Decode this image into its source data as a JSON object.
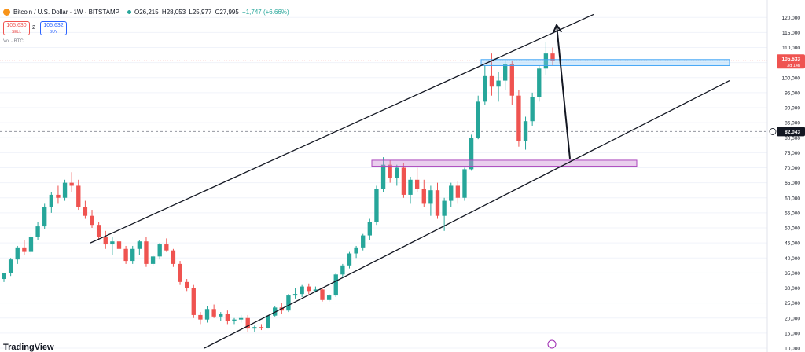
{
  "header": {
    "symbol": "Bitcoin / U.S. Dollar · 1W · BITSTAMP",
    "open": "O26,215",
    "high": "H28,053",
    "low": "L25,977",
    "close": "C27,995",
    "change": "+1,747 (+6.66%)"
  },
  "trade": {
    "sell_price": "105,630",
    "sell_label": "SELL",
    "spread": "2",
    "buy_price": "105,632",
    "buy_label": "BUY"
  },
  "volume_label": "Vol · BTC",
  "brand": "TradingView",
  "price_axis": {
    "ticks": [
      "120,000",
      "115,000",
      "110,000",
      "105,000",
      "100,000",
      "95,000",
      "90,000",
      "85,000",
      "80,000",
      "75,000",
      "70,000",
      "65,000",
      "60,000",
      "55,000",
      "50,000",
      "45,000",
      "40,000",
      "35,000",
      "30,000",
      "25,000",
      "20,000",
      "15,000",
      "10,000"
    ],
    "last_price_label": "105,633",
    "last_price_countdown": "3d 14h",
    "crosshair_label": "82,043"
  },
  "colors": {
    "up": "#26a69a",
    "down": "#ef5350",
    "zone": "#ce93d8",
    "zone_blue": "#90caf9",
    "line": "#131722"
  },
  "chart_data": {
    "type": "candlestick",
    "ylim": [
      10000,
      120000
    ],
    "crosshair_price": 82043,
    "last_price": 105633,
    "candles": [
      [
        33000,
        35000,
        32000,
        35000
      ],
      [
        35000,
        40000,
        34000,
        39500
      ],
      [
        39500,
        44000,
        38000,
        43500
      ],
      [
        43500,
        46000,
        41000,
        42000
      ],
      [
        42000,
        48000,
        41000,
        47000
      ],
      [
        47000,
        52000,
        46000,
        50500
      ],
      [
        50500,
        58000,
        49500,
        57000
      ],
      [
        57000,
        62000,
        55000,
        61000
      ],
      [
        61000,
        64000,
        58000,
        60000
      ],
      [
        60000,
        66000,
        59000,
        65000
      ],
      [
        65000,
        68500,
        62000,
        64000
      ],
      [
        64000,
        66000,
        56000,
        57000
      ],
      [
        57000,
        59000,
        53000,
        54000
      ],
      [
        54000,
        56000,
        50000,
        51000
      ],
      [
        51000,
        52000,
        46000,
        47000
      ],
      [
        47000,
        49000,
        43000,
        44500
      ],
      [
        44500,
        47000,
        41000,
        45500
      ],
      [
        45500,
        47000,
        42000,
        43000
      ],
      [
        43000,
        44000,
        38000,
        39000
      ],
      [
        39000,
        44000,
        38000,
        43000
      ],
      [
        43000,
        46000,
        41000,
        45500
      ],
      [
        45500,
        47000,
        37000,
        38000
      ],
      [
        38000,
        41000,
        37500,
        40500
      ],
      [
        40500,
        45000,
        39500,
        44500
      ],
      [
        44500,
        46500,
        42000,
        42500
      ],
      [
        42500,
        43000,
        37000,
        38000
      ],
      [
        38000,
        39000,
        31000,
        32000
      ],
      [
        32000,
        33000,
        29000,
        30000
      ],
      [
        30000,
        31000,
        20000,
        21000
      ],
      [
        21000,
        22000,
        18000,
        19500
      ],
      [
        19500,
        24000,
        18500,
        23000
      ],
      [
        23000,
        24500,
        20000,
        20500
      ],
      [
        20500,
        22000,
        19000,
        21500
      ],
      [
        21500,
        22500,
        18000,
        19000
      ],
      [
        19000,
        20000,
        18000,
        19500
      ],
      [
        19500,
        21000,
        18500,
        20000
      ],
      [
        20000,
        21000,
        15500,
        16500
      ],
      [
        16500,
        17500,
        15500,
        17000
      ],
      [
        17000,
        18000,
        16000,
        16800
      ],
      [
        16800,
        21000,
        16500,
        20800
      ],
      [
        20800,
        24000,
        20500,
        23500
      ],
      [
        23500,
        25000,
        21500,
        22500
      ],
      [
        22500,
        28000,
        22000,
        27500
      ],
      [
        27500,
        30000,
        26500,
        28000
      ],
      [
        28000,
        31000,
        27000,
        30500
      ],
      [
        30500,
        31500,
        28000,
        29000
      ],
      [
        29000,
        30500,
        28500,
        29500
      ],
      [
        29500,
        30000,
        25500,
        26000
      ],
      [
        26000,
        28000,
        25500,
        27500
      ],
      [
        27500,
        35000,
        27000,
        34500
      ],
      [
        34500,
        38000,
        33500,
        37500
      ],
      [
        37500,
        42000,
        36500,
        41500
      ],
      [
        41500,
        44000,
        40000,
        43500
      ],
      [
        43500,
        48000,
        42500,
        47500
      ],
      [
        47500,
        53000,
        46000,
        52000
      ],
      [
        52000,
        64000,
        51000,
        63000
      ],
      [
        63000,
        73500,
        62000,
        71000
      ],
      [
        71000,
        72500,
        65000,
        66500
      ],
      [
        66500,
        71000,
        64000,
        70000
      ],
      [
        70000,
        71500,
        60000,
        61000
      ],
      [
        61000,
        67000,
        58000,
        66000
      ],
      [
        66000,
        70000,
        62000,
        63000
      ],
      [
        63000,
        66000,
        57000,
        58000
      ],
      [
        58000,
        64000,
        54000,
        62500
      ],
      [
        62500,
        65000,
        53000,
        54000
      ],
      [
        54000,
        60000,
        49000,
        59000
      ],
      [
        59000,
        65000,
        57000,
        64000
      ],
      [
        64000,
        65500,
        58000,
        60000
      ],
      [
        60000,
        70000,
        59000,
        69500
      ],
      [
        69500,
        81000,
        69000,
        80000
      ],
      [
        80000,
        94000,
        79500,
        92000
      ],
      [
        92000,
        104000,
        91000,
        100500
      ],
      [
        100500,
        108000,
        94000,
        97000
      ],
      [
        97000,
        102000,
        92000,
        99000
      ],
      [
        99000,
        106000,
        96000,
        104500
      ],
      [
        104500,
        105500,
        91000,
        94000
      ],
      [
        94000,
        96000,
        77000,
        79000
      ],
      [
        79000,
        87000,
        76000,
        85500
      ],
      [
        85500,
        95000,
        84000,
        93500
      ],
      [
        93500,
        104000,
        92000,
        103000
      ],
      [
        103000,
        111800,
        101000,
        108000
      ],
      [
        108000,
        110000,
        104000,
        105633
      ]
    ],
    "drawings": {
      "channel_upper": [
        [
          115,
          45000
        ],
        [
          755,
          121000
        ]
      ],
      "channel_lower": [
        [
          260,
          10000
        ],
        [
          928,
          99000
        ]
      ],
      "support_zone": [
        72500,
        70500
      ],
      "resistance_zone": [
        106000,
        104000
      ],
      "arrow_from": [
        725,
        73000
      ],
      "arrow_to": [
        708,
        117500
      ]
    }
  }
}
